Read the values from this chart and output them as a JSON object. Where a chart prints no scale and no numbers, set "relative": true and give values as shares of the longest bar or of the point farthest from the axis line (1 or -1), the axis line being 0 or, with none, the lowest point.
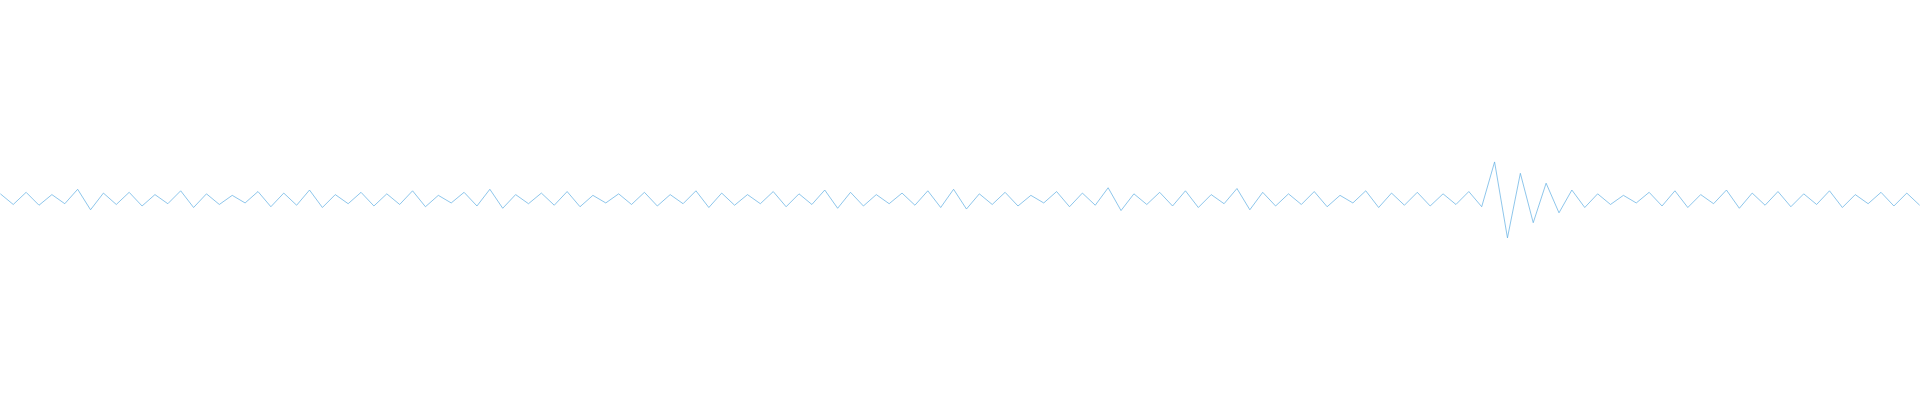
{
  "chart_data": {
    "type": "line",
    "relative": true,
    "color": "#5dade2",
    "marker": "none",
    "categories": [
      null,
      null,
      null,
      null,
      null,
      null,
      null,
      null,
      null,
      null,
      null,
      null,
      null,
      null,
      null,
      null,
      null,
      null,
      null,
      null,
      null,
      null,
      null,
      null,
      null,
      null,
      null,
      null,
      null,
      null,
      null,
      null,
      null,
      null,
      null,
      null,
      null,
      null,
      null,
      null,
      null,
      null,
      null,
      null,
      null,
      null,
      null,
      null,
      null,
      null,
      null,
      null,
      null,
      null,
      null,
      null,
      null,
      null,
      null,
      null,
      null,
      null,
      null,
      null,
      null,
      null,
      null,
      null,
      null,
      null,
      null,
      null,
      null,
      null,
      null,
      null,
      null,
      null,
      null,
      null,
      null,
      null,
      null,
      null,
      null,
      null,
      null,
      null,
      null,
      null,
      null,
      null,
      null,
      null,
      null,
      null,
      null,
      null,
      null,
      null,
      null,
      null,
      null,
      null,
      null,
      null,
      null,
      null,
      null,
      null,
      null,
      null,
      null,
      null,
      null,
      null,
      null,
      null,
      null,
      null,
      null,
      null,
      null,
      null,
      null,
      null,
      null,
      null,
      null,
      null,
      null,
      null,
      null,
      null,
      null,
      null,
      null,
      null,
      null,
      null,
      null,
      null,
      null,
      null,
      null,
      null,
      null,
      null,
      null,
      null
    ],
    "values": [
      0.58,
      0.44,
      0.6,
      0.43,
      0.57,
      0.45,
      0.64,
      0.37,
      0.59,
      0.44,
      0.6,
      0.42,
      0.57,
      0.45,
      0.62,
      0.4,
      0.58,
      0.44,
      0.56,
      0.46,
      0.61,
      0.41,
      0.59,
      0.43,
      0.63,
      0.4,
      0.57,
      0.45,
      0.6,
      0.42,
      0.58,
      0.44,
      0.62,
      0.41,
      0.56,
      0.46,
      0.6,
      0.42,
      0.64,
      0.39,
      0.57,
      0.45,
      0.59,
      0.43,
      0.61,
      0.41,
      0.56,
      0.46,
      0.58,
      0.44,
      0.6,
      0.42,
      0.57,
      0.45,
      0.62,
      0.4,
      0.59,
      0.43,
      0.57,
      0.45,
      0.61,
      0.41,
      0.58,
      0.44,
      0.63,
      0.39,
      0.6,
      0.42,
      0.57,
      0.45,
      0.59,
      0.43,
      0.62,
      0.4,
      0.64,
      0.38,
      0.58,
      0.44,
      0.6,
      0.42,
      0.56,
      0.46,
      0.61,
      0.41,
      0.59,
      0.43,
      0.66,
      0.36,
      0.58,
      0.44,
      0.6,
      0.42,
      0.62,
      0.4,
      0.57,
      0.45,
      0.65,
      0.37,
      0.6,
      0.42,
      0.58,
      0.44,
      0.61,
      0.41,
      0.56,
      0.46,
      0.62,
      0.4,
      0.59,
      0.43,
      0.6,
      0.42,
      0.58,
      0.44,
      0.61,
      0.41,
      1.0,
      0.0,
      0.85,
      0.2,
      0.72,
      0.33,
      0.63,
      0.4,
      0.58,
      0.44,
      0.56,
      0.46,
      0.6,
      0.42,
      0.62,
      0.4,
      0.57,
      0.45,
      0.63,
      0.39,
      0.59,
      0.43,
      0.61,
      0.41,
      0.58,
      0.44,
      0.62,
      0.4,
      0.57,
      0.45,
      0.6,
      0.42,
      0.59,
      0.43
    ]
  }
}
